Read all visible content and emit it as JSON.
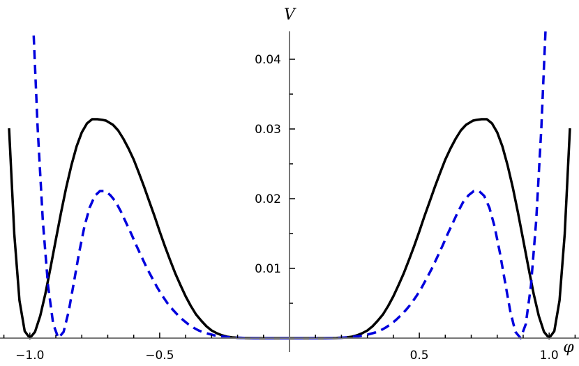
{
  "chart_data": {
    "type": "line",
    "xlabel": "φ",
    "ylabel": "V",
    "xlim": [
      -1.115,
      1.115
    ],
    "ylim": [
      0,
      0.044
    ],
    "x_ticks": [
      {
        "value": -1.0,
        "label": "−1.0"
      },
      {
        "value": -0.5,
        "label": "−0.5"
      },
      {
        "value": 0.5,
        "label": "0.5"
      },
      {
        "value": 1.0,
        "label": "1.0"
      }
    ],
    "y_ticks": [
      {
        "value": 0.01,
        "label": "0.01"
      },
      {
        "value": 0.02,
        "label": "0.02"
      },
      {
        "value": 0.03,
        "label": "0.03"
      },
      {
        "value": 0.04,
        "label": "0.04"
      }
    ],
    "series": [
      {
        "style": "solid",
        "color": "#000000",
        "x": [
          -1.08,
          -1.06,
          -1.04,
          -1.02,
          -1.0,
          -0.98,
          -0.96,
          -0.94,
          -0.92,
          -0.9,
          -0.88,
          -0.86,
          -0.84,
          -0.82,
          -0.8,
          -0.78,
          -0.76,
          -0.74,
          -0.72,
          -0.707,
          -0.68,
          -0.66,
          -0.64,
          -0.62,
          -0.6,
          -0.58,
          -0.56,
          -0.54,
          -0.52,
          -0.5,
          -0.48,
          -0.46,
          -0.44,
          -0.42,
          -0.4,
          -0.38,
          -0.36,
          -0.34,
          -0.32,
          -0.3,
          -0.28,
          -0.26,
          -0.24,
          -0.22,
          -0.2,
          -0.18,
          -0.16,
          -0.14,
          -0.12,
          -0.1,
          -0.08,
          -0.06,
          -0.04,
          -0.02,
          0,
          0.02,
          0.04,
          0.06,
          0.08,
          0.1,
          0.12,
          0.14,
          0.16,
          0.18,
          0.2,
          0.22,
          0.24,
          0.26,
          0.28,
          0.3,
          0.32,
          0.34,
          0.36,
          0.38,
          0.4,
          0.42,
          0.44,
          0.46,
          0.48,
          0.5,
          0.52,
          0.54,
          0.56,
          0.58,
          0.6,
          0.62,
          0.64,
          0.66,
          0.68,
          0.707,
          0.72,
          0.74,
          0.76,
          0.78,
          0.8,
          0.82,
          0.84,
          0.86,
          0.88,
          0.9,
          0.92,
          0.94,
          0.96,
          0.98,
          1.0,
          1.02,
          1.04,
          1.06,
          1.08
        ],
        "y": [
          0.0301,
          0.0149,
          0.0054,
          0.001,
          0.0,
          0.0009,
          0.0032,
          0.0064,
          0.0102,
          0.0141,
          0.018,
          0.0216,
          0.0248,
          0.0275,
          0.0295,
          0.0308,
          0.0314,
          0.0314,
          0.0313,
          0.0312,
          0.0306,
          0.0298,
          0.0286,
          0.0272,
          0.0256,
          0.0237,
          0.0217,
          0.0196,
          0.0175,
          0.0153,
          0.0132,
          0.0112,
          0.0093,
          0.0076,
          0.006,
          0.0046,
          0.0034,
          0.0025,
          0.0017,
          0.0011,
          0.0007,
          0.0004,
          0.0002,
          0.0001,
          5e-05,
          2e-05,
          1e-05,
          0.0,
          0.0,
          0.0,
          0.0,
          0.0,
          0.0,
          0.0,
          0.0,
          0.0,
          0.0,
          0.0,
          0.0,
          0.0,
          0.0,
          0.0,
          1e-05,
          2e-05,
          5e-05,
          0.0001,
          0.0002,
          0.0004,
          0.0007,
          0.0011,
          0.0017,
          0.0025,
          0.0034,
          0.0046,
          0.006,
          0.0076,
          0.0093,
          0.0112,
          0.0132,
          0.0153,
          0.0175,
          0.0196,
          0.0217,
          0.0237,
          0.0256,
          0.0272,
          0.0286,
          0.0298,
          0.0306,
          0.0312,
          0.0313,
          0.0314,
          0.0314,
          0.0308,
          0.0295,
          0.0275,
          0.0248,
          0.0216,
          0.018,
          0.0141,
          0.0102,
          0.0064,
          0.0032,
          0.0009,
          0.0,
          0.001,
          0.0054,
          0.0149,
          0.0301
        ]
      },
      {
        "style": "dashed",
        "color": "#0000dd",
        "x": [
          -0.99,
          -0.97,
          -0.95,
          -0.93,
          -0.91,
          -0.89,
          -0.87,
          -0.85,
          -0.83,
          -0.81,
          -0.79,
          -0.77,
          -0.75,
          -0.73,
          -0.71,
          -0.69,
          -0.67,
          -0.65,
          -0.63,
          -0.61,
          -0.59,
          -0.57,
          -0.55,
          -0.53,
          -0.51,
          -0.49,
          -0.47,
          -0.45,
          -0.43,
          -0.41,
          -0.39,
          -0.37,
          -0.35,
          -0.33,
          -0.31,
          -0.29,
          -0.27,
          -0.25,
          -0.23,
          -0.21,
          -0.19,
          -0.17,
          -0.15,
          -0.13,
          -0.11,
          -0.09,
          -0.07,
          -0.05,
          -0.03,
          -0.01,
          0,
          0.01,
          0.03,
          0.05,
          0.07,
          0.09,
          0.11,
          0.13,
          0.15,
          0.17,
          0.19,
          0.21,
          0.23,
          0.25,
          0.27,
          0.29,
          0.31,
          0.33,
          0.35,
          0.37,
          0.39,
          0.41,
          0.43,
          0.45,
          0.47,
          0.49,
          0.51,
          0.53,
          0.55,
          0.57,
          0.59,
          0.61,
          0.63,
          0.65,
          0.67,
          0.69,
          0.71,
          0.73,
          0.75,
          0.77,
          0.79,
          0.81,
          0.83,
          0.85,
          0.87,
          0.89,
          0.91,
          0.93,
          0.95,
          0.97,
          0.99
        ],
        "y": [
          0.0476,
          0.0301,
          0.0168,
          0.0075,
          0.002,
          0.0,
          0.0009,
          0.0039,
          0.0081,
          0.0123,
          0.016,
          0.0187,
          0.0204,
          0.0211,
          0.0211,
          0.0205,
          0.0196,
          0.0182,
          0.0166,
          0.015,
          0.0133,
          0.0117,
          0.0101,
          0.0087,
          0.0073,
          0.0061,
          0.005,
          0.0041,
          0.0033,
          0.0026,
          0.002,
          0.0015,
          0.0011,
          0.0008,
          0.0006,
          0.0004,
          0.0003,
          0.0002,
          0.0001,
          7e-05,
          4e-05,
          2e-05,
          1e-05,
          0.0,
          0.0,
          0.0,
          0.0,
          0.0,
          0.0,
          0.0,
          0.0,
          0.0,
          0.0,
          0.0,
          0.0,
          0.0,
          0.0,
          0.0,
          1e-05,
          2e-05,
          4e-05,
          7e-05,
          0.0001,
          0.0002,
          0.0003,
          0.0004,
          0.0006,
          0.0008,
          0.0011,
          0.0015,
          0.002,
          0.0026,
          0.0033,
          0.0041,
          0.005,
          0.0061,
          0.0073,
          0.0087,
          0.0101,
          0.0117,
          0.0133,
          0.015,
          0.0166,
          0.0182,
          0.0196,
          0.0205,
          0.0211,
          0.0211,
          0.0204,
          0.0187,
          0.016,
          0.0123,
          0.0081,
          0.0039,
          0.0009,
          0.0,
          0.002,
          0.0075,
          0.0168,
          0.0301,
          0.0476
        ]
      }
    ],
    "grid": false,
    "legend": "none"
  }
}
